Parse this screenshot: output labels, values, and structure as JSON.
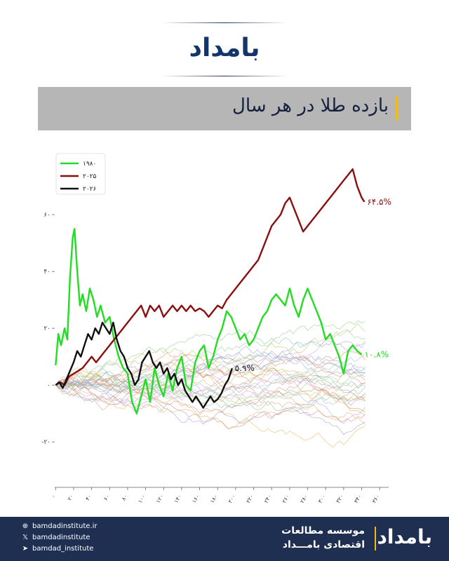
{
  "brand": {
    "logo_text": "بامداد"
  },
  "title": "بازده طلا در هر سال",
  "chart_data": {
    "type": "line",
    "xlim": [
      -1,
      370
    ],
    "ylim": [
      -36,
      80
    ],
    "x_ticks": [
      0,
      20,
      40,
      60,
      80,
      100,
      120,
      140,
      160,
      180,
      200,
      220,
      240,
      260,
      280,
      300,
      320,
      340,
      360
    ],
    "x_tick_labels": [
      "۰",
      "۲۰",
      "۴۰",
      "۶۰",
      "۸۰",
      "۱۰۰",
      "۱۲۰",
      "۱۴۰",
      "۱۶۰",
      "۱۸۰",
      "۲۰۰",
      "۲۲۰",
      "۲۴۰",
      "۲۶۰",
      "۲۸۰",
      "۳۰۰",
      "۳۲۰",
      "۳۴۰",
      "۳۶۰"
    ],
    "y_ticks": [
      -20,
      0,
      20,
      40,
      60
    ],
    "y_tick_labels": [
      "-۲۰",
      "۰",
      "۲۰",
      "۴۰",
      "۶۰"
    ],
    "legend_position": "top-left",
    "series": [
      {
        "name": "۱۹۸۰",
        "color": "#22dd22",
        "end_label": "۱۰.۸%",
        "points": [
          [
            0,
            7
          ],
          [
            3,
            18
          ],
          [
            6,
            14
          ],
          [
            10,
            20
          ],
          [
            13,
            16
          ],
          [
            16,
            38
          ],
          [
            19,
            52
          ],
          [
            21,
            55
          ],
          [
            24,
            40
          ],
          [
            27,
            28
          ],
          [
            30,
            32
          ],
          [
            34,
            26
          ],
          [
            38,
            34
          ],
          [
            42,
            30
          ],
          [
            46,
            24
          ],
          [
            50,
            28
          ],
          [
            55,
            22
          ],
          [
            60,
            24
          ],
          [
            65,
            16
          ],
          [
            70,
            10
          ],
          [
            75,
            6
          ],
          [
            80,
            4
          ],
          [
            85,
            -6
          ],
          [
            90,
            -10
          ],
          [
            95,
            -4
          ],
          [
            100,
            2
          ],
          [
            105,
            -6
          ],
          [
            110,
            6
          ],
          [
            115,
            0
          ],
          [
            120,
            -4
          ],
          [
            125,
            4
          ],
          [
            130,
            -2
          ],
          [
            135,
            6
          ],
          [
            140,
            10
          ],
          [
            145,
            0
          ],
          [
            150,
            -2
          ],
          [
            155,
            8
          ],
          [
            160,
            12
          ],
          [
            165,
            14
          ],
          [
            170,
            6
          ],
          [
            175,
            10
          ],
          [
            180,
            16
          ],
          [
            185,
            20
          ],
          [
            190,
            26
          ],
          [
            195,
            24
          ],
          [
            200,
            20
          ],
          [
            205,
            16
          ],
          [
            210,
            18
          ],
          [
            215,
            14
          ],
          [
            220,
            16
          ],
          [
            225,
            20
          ],
          [
            230,
            24
          ],
          [
            235,
            26
          ],
          [
            240,
            30
          ],
          [
            245,
            32
          ],
          [
            250,
            30
          ],
          [
            255,
            28
          ],
          [
            260,
            34
          ],
          [
            265,
            28
          ],
          [
            270,
            24
          ],
          [
            275,
            30
          ],
          [
            280,
            34
          ],
          [
            285,
            30
          ],
          [
            290,
            26
          ],
          [
            295,
            22
          ],
          [
            300,
            16
          ],
          [
            305,
            18
          ],
          [
            310,
            14
          ],
          [
            315,
            10
          ],
          [
            320,
            4
          ],
          [
            325,
            12
          ],
          [
            330,
            14
          ],
          [
            335,
            12
          ],
          [
            340,
            10.8
          ]
        ]
      },
      {
        "name": "۲۰۲۵",
        "color": "#8b0e0e",
        "end_label": "۶۴.۵%",
        "points": [
          [
            0,
            0
          ],
          [
            5,
            1
          ],
          [
            10,
            0
          ],
          [
            15,
            3
          ],
          [
            20,
            4
          ],
          [
            25,
            5
          ],
          [
            30,
            6
          ],
          [
            35,
            8
          ],
          [
            40,
            10
          ],
          [
            45,
            8
          ],
          [
            50,
            10
          ],
          [
            55,
            12
          ],
          [
            60,
            14
          ],
          [
            65,
            16
          ],
          [
            70,
            18
          ],
          [
            75,
            20
          ],
          [
            80,
            22
          ],
          [
            85,
            24
          ],
          [
            90,
            26
          ],
          [
            95,
            28
          ],
          [
            100,
            24
          ],
          [
            105,
            28
          ],
          [
            110,
            26
          ],
          [
            115,
            28
          ],
          [
            120,
            24
          ],
          [
            125,
            26
          ],
          [
            130,
            28
          ],
          [
            135,
            26
          ],
          [
            140,
            28
          ],
          [
            145,
            26
          ],
          [
            150,
            28
          ],
          [
            155,
            26
          ],
          [
            160,
            27
          ],
          [
            165,
            26
          ],
          [
            170,
            24
          ],
          [
            175,
            26
          ],
          [
            180,
            28
          ],
          [
            185,
            27
          ],
          [
            190,
            30
          ],
          [
            195,
            32
          ],
          [
            200,
            34
          ],
          [
            205,
            36
          ],
          [
            210,
            38
          ],
          [
            215,
            40
          ],
          [
            220,
            42
          ],
          [
            225,
            44
          ],
          [
            230,
            48
          ],
          [
            235,
            52
          ],
          [
            240,
            56
          ],
          [
            245,
            58
          ],
          [
            250,
            60
          ],
          [
            255,
            64
          ],
          [
            260,
            66
          ],
          [
            265,
            62
          ],
          [
            270,
            58
          ],
          [
            275,
            54
          ],
          [
            280,
            56
          ],
          [
            285,
            58
          ],
          [
            290,
            60
          ],
          [
            295,
            62
          ],
          [
            300,
            64
          ],
          [
            305,
            66
          ],
          [
            310,
            68
          ],
          [
            315,
            70
          ],
          [
            320,
            72
          ],
          [
            325,
            74
          ],
          [
            330,
            76
          ],
          [
            335,
            70
          ],
          [
            340,
            66
          ],
          [
            343,
            64.5
          ]
        ]
      },
      {
        "name": "۲۰۲۶",
        "color": "#111111",
        "end_label": "۵.۹%",
        "points": [
          [
            0,
            0
          ],
          [
            4,
            1
          ],
          [
            8,
            -1
          ],
          [
            12,
            2
          ],
          [
            16,
            5
          ],
          [
            20,
            8
          ],
          [
            24,
            12
          ],
          [
            28,
            10
          ],
          [
            32,
            14
          ],
          [
            36,
            18
          ],
          [
            40,
            16
          ],
          [
            44,
            20
          ],
          [
            48,
            18
          ],
          [
            52,
            22
          ],
          [
            56,
            20
          ],
          [
            60,
            18
          ],
          [
            64,
            22
          ],
          [
            68,
            16
          ],
          [
            72,
            12
          ],
          [
            76,
            10
          ],
          [
            80,
            6
          ],
          [
            84,
            4
          ],
          [
            88,
            0
          ],
          [
            92,
            2
          ],
          [
            96,
            8
          ],
          [
            100,
            10
          ],
          [
            104,
            12
          ],
          [
            108,
            8
          ],
          [
            112,
            6
          ],
          [
            116,
            8
          ],
          [
            120,
            4
          ],
          [
            124,
            6
          ],
          [
            128,
            2
          ],
          [
            132,
            4
          ],
          [
            136,
            0
          ],
          [
            140,
            2
          ],
          [
            144,
            -2
          ],
          [
            148,
            -4
          ],
          [
            152,
            -6
          ],
          [
            156,
            -4
          ],
          [
            160,
            -6
          ],
          [
            164,
            -8
          ],
          [
            168,
            -6
          ],
          [
            172,
            -4
          ],
          [
            176,
            -6
          ],
          [
            180,
            -5
          ],
          [
            184,
            -3
          ],
          [
            188,
            0
          ],
          [
            192,
            2
          ],
          [
            196,
            5.9
          ]
        ]
      }
    ]
  },
  "footer": {
    "website": "bamdadinstitute.ir",
    "x_handle": "bamdadinstitute",
    "telegram": "bamdad_institute",
    "org_line1": "موسسه مطالعات",
    "org_line2": "اقتصادی بامـــداد",
    "logo_text": "بامداد"
  }
}
